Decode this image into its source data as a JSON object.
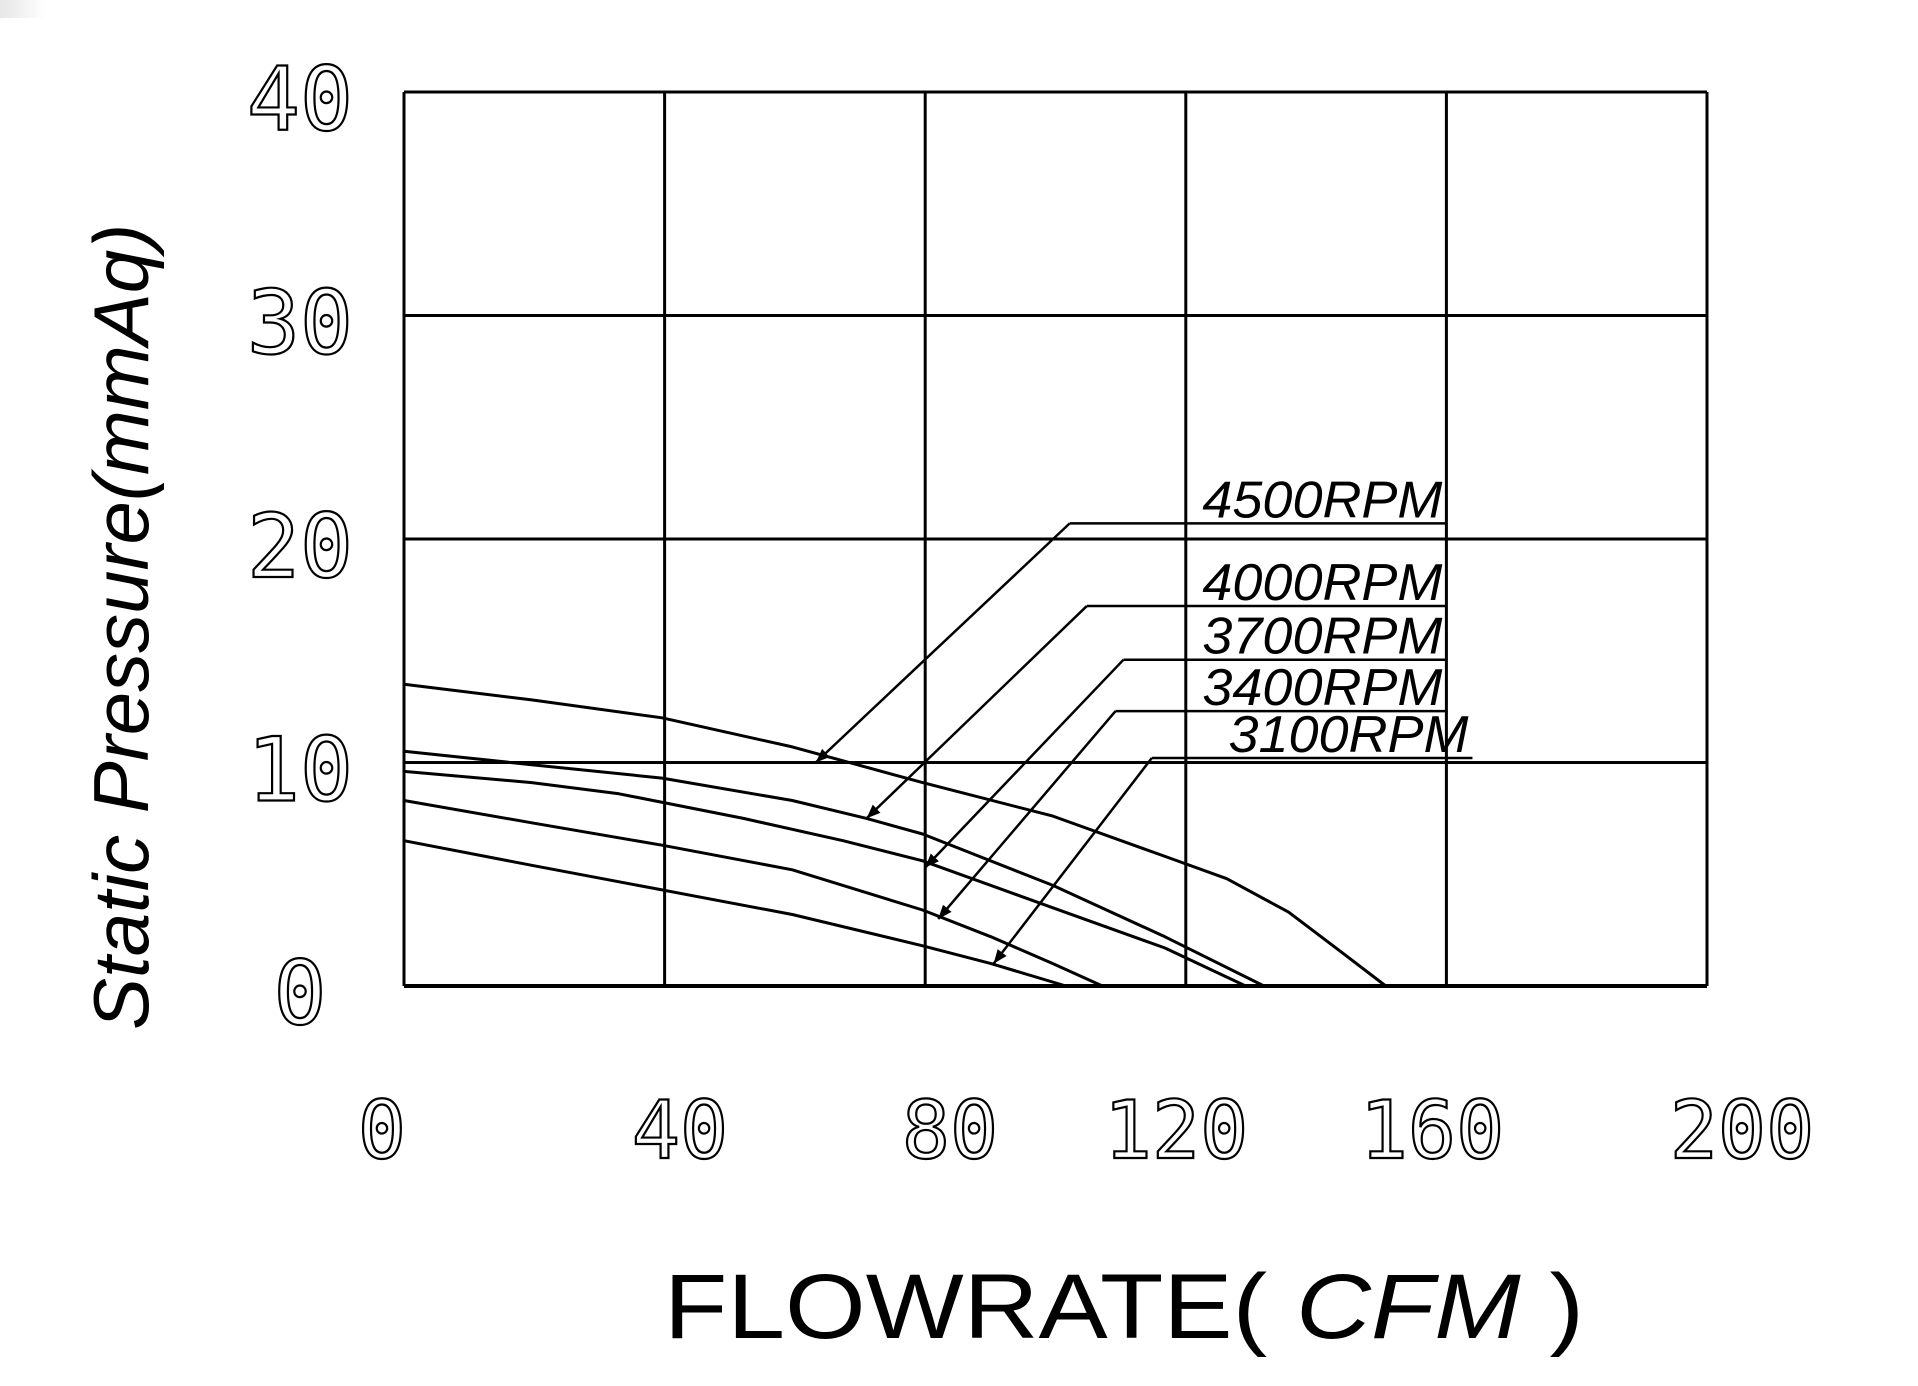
{
  "chart_data": {
    "type": "line",
    "title": "",
    "xlabel": "FLOWRATE( CFM )",
    "xlabel_parts": {
      "main": "FLOWRATE(",
      "unit": " CFM ",
      "close": ")"
    },
    "ylabel": "Static Pressure(mmAq)",
    "xlim": [
      0,
      200
    ],
    "ylim": [
      0,
      40
    ],
    "x_ticks": [
      0,
      40,
      80,
      120,
      160,
      200
    ],
    "y_ticks": [
      0,
      10,
      20,
      30,
      40
    ],
    "x_tick_labels": [
      "0",
      "40",
      "80",
      "120",
      "160",
      "200"
    ],
    "y_tick_labels": [
      "0",
      "10",
      "20",
      "30",
      "40"
    ],
    "grid": true,
    "legend_position": "annotations with leader arrows, right-center of plot",
    "series": [
      {
        "name": "4500RPM",
        "x": [
          0,
          19.6,
          39.6,
          59.6,
          79.6,
          99.6,
          116.8,
          126.3,
          135.8,
          143.5,
          150.7
        ],
        "y": [
          13.5,
          12.8,
          12.0,
          10.7,
          9.1,
          7.6,
          5.8,
          4.8,
          3.3,
          1.6,
          0
        ]
      },
      {
        "name": "4000RPM",
        "x": [
          0,
          19.6,
          39.6,
          59.6,
          71.0,
          79.6,
          99.6,
          116.8,
          132.0
        ],
        "y": [
          10.5,
          9.9,
          9.3,
          8.3,
          7.5,
          6.8,
          4.5,
          2.2,
          0
        ]
      },
      {
        "name": "3700RPM",
        "x": [
          0,
          19.6,
          33.0,
          52.1,
          67.4,
          79.6,
          99.6,
          116.8,
          129.2
        ],
        "y": [
          9.6,
          9.1,
          8.6,
          7.5,
          6.5,
          5.6,
          3.5,
          1.7,
          0
        ]
      },
      {
        "name": "3400RPM",
        "x": [
          0,
          19.6,
          39.6,
          59.6,
          79.6,
          90.1,
          99.6,
          107.2
        ],
        "y": [
          8.3,
          7.3,
          6.3,
          5.2,
          3.4,
          2.2,
          1.0,
          0
        ]
      },
      {
        "name": "3100RPM",
        "x": [
          0,
          19.6,
          39.6,
          59.6,
          79.6,
          90.1,
          101.6
        ],
        "y": [
          6.5,
          5.4,
          4.3,
          3.2,
          1.8,
          1.0,
          0
        ]
      }
    ],
    "annotations": [
      {
        "text": "4500RPM",
        "label_x_cfm": 160,
        "label_y_mmAq": 20.7,
        "arrow_tip": [
          63.2,
          10.0
        ]
      },
      {
        "text": "4000RPM",
        "label_x_cfm": 160,
        "label_y_mmAq": 17.0,
        "arrow_tip": [
          71.0,
          7.5
        ]
      },
      {
        "text": "3700RPM",
        "label_x_cfm": 160,
        "label_y_mmAq": 14.6,
        "arrow_tip": [
          80.0,
          5.3
        ]
      },
      {
        "text": "3400RPM",
        "label_x_cfm": 160,
        "label_y_mmAq": 12.3,
        "arrow_tip": [
          82.0,
          3.0
        ]
      },
      {
        "text": "3100RPM",
        "label_x_cfm": 164,
        "label_y_mmAq": 10.2,
        "arrow_tip": [
          90.5,
          1.0
        ]
      }
    ]
  },
  "colors": {
    "line": "#000000",
    "background": "#ffffff"
  }
}
